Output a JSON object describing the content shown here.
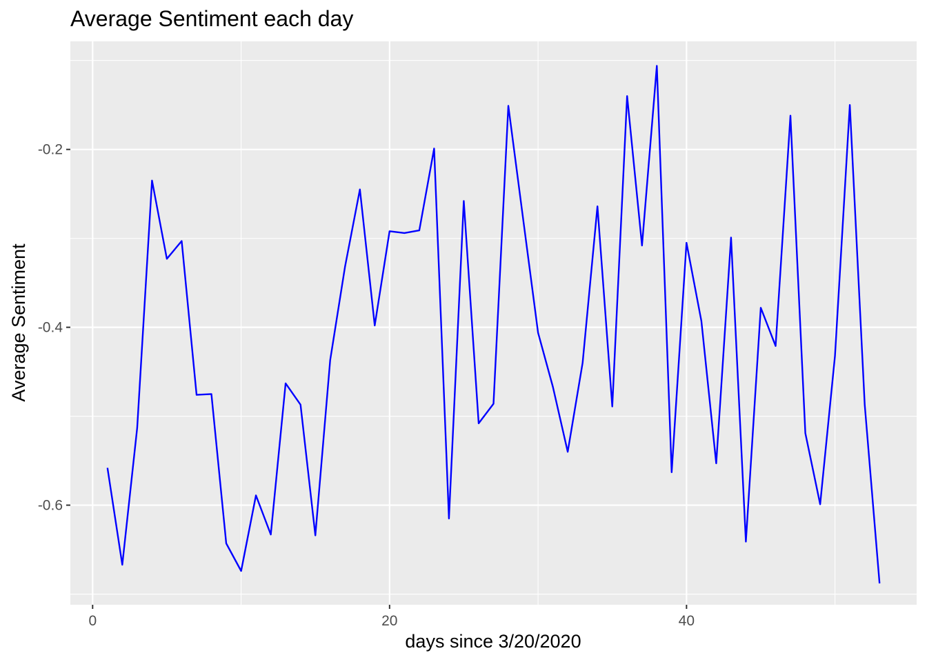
{
  "chart_data": {
    "type": "line",
    "title": "Average Sentiment each day",
    "xlabel": "days since 3/20/2020",
    "ylabel": "Average Sentiment",
    "xlim": [
      -1.5,
      55.5
    ],
    "ylim": [
      -0.712,
      -0.0785
    ],
    "x_ticks": [
      0,
      20,
      40
    ],
    "x_tick_labels": [
      "0",
      "20",
      "40"
    ],
    "y_ticks": [
      -0.2,
      -0.4,
      -0.6
    ],
    "y_tick_labels": [
      "-0.2",
      "-0.4",
      "-0.6"
    ],
    "x_minor_gridlines": [
      10,
      30,
      50
    ],
    "y_minor_gridlines": [
      -0.1,
      -0.3,
      -0.5,
      -0.7
    ],
    "grid": true,
    "legend": "none",
    "series": [
      {
        "color": "#0000ff",
        "x": [
          1,
          2,
          3,
          4,
          5,
          6,
          7,
          8,
          9,
          10,
          11,
          12,
          13,
          14,
          15,
          16,
          17,
          18,
          19,
          20,
          21,
          22,
          23,
          24,
          25,
          26,
          27,
          28,
          29,
          30,
          31,
          32,
          33,
          34,
          35,
          36,
          37,
          38,
          39,
          40,
          41,
          42,
          43,
          44,
          45,
          46,
          47,
          48,
          49,
          50,
          51,
          52,
          53
        ],
        "y": [
          -0.558,
          -0.667,
          -0.513,
          -0.235,
          -0.323,
          -0.303,
          -0.476,
          -0.475,
          -0.643,
          -0.674,
          -0.589,
          -0.633,
          -0.463,
          -0.487,
          -0.634,
          -0.437,
          -0.332,
          -0.245,
          -0.398,
          -0.292,
          -0.294,
          -0.291,
          -0.199,
          -0.615,
          -0.258,
          -0.508,
          -0.486,
          -0.151,
          -0.279,
          -0.406,
          -0.467,
          -0.54,
          -0.44,
          -0.264,
          -0.489,
          -0.14,
          -0.308,
          -0.106,
          -0.563,
          -0.305,
          -0.393,
          -0.553,
          -0.299,
          -0.641,
          -0.378,
          -0.421,
          -0.162,
          -0.519,
          -0.599,
          -0.432,
          -0.15,
          -0.487,
          -0.688
        ]
      }
    ]
  },
  "colors": {
    "panel_background": "#ebebeb",
    "gridline": "#ffffff",
    "line": "#0000ff",
    "tick_label": "#4d4d4d"
  }
}
